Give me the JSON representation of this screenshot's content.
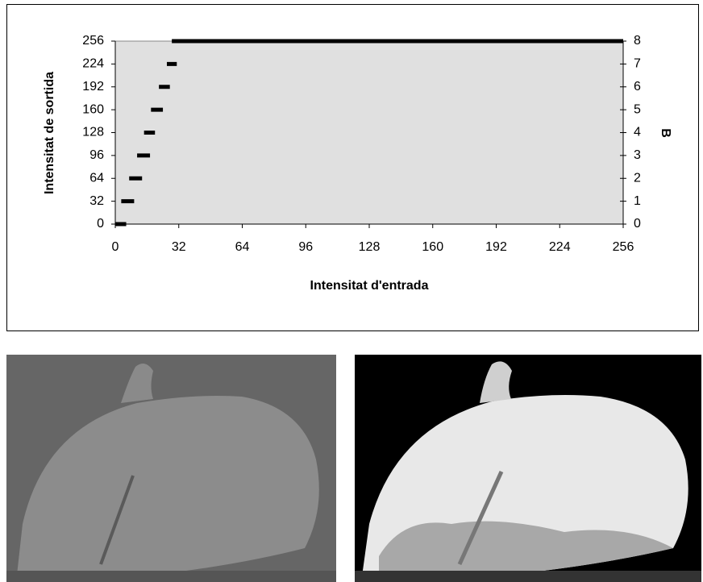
{
  "chart_data": {
    "type": "segments",
    "x_label": "Intensitat d'entrada",
    "y_label": "Intensitat de sortida",
    "y2_label": "B",
    "x_start": [
      0,
      3,
      7,
      11,
      14.5,
      18,
      22,
      26,
      28.5
    ],
    "x_end": [
      5.5,
      9.5,
      13.5,
      17.5,
      20,
      24,
      27.5,
      31,
      256
    ],
    "values": [
      0,
      32,
      64,
      96,
      128,
      160,
      192,
      224,
      256
    ],
    "color": "#000000",
    "background": "#e0e0e0",
    "xlim": [
      0,
      256
    ],
    "xticks": [
      0,
      32,
      64,
      96,
      128,
      160,
      192,
      224,
      256
    ],
    "ylim": [
      0,
      256
    ],
    "yticks": [
      0,
      32,
      64,
      96,
      128,
      160,
      192,
      224,
      256
    ],
    "y2lim": [
      0,
      8
    ],
    "y2ticks": [
      0,
      1,
      2,
      3,
      4,
      5,
      6,
      7,
      8
    ],
    "grid": false
  }
}
